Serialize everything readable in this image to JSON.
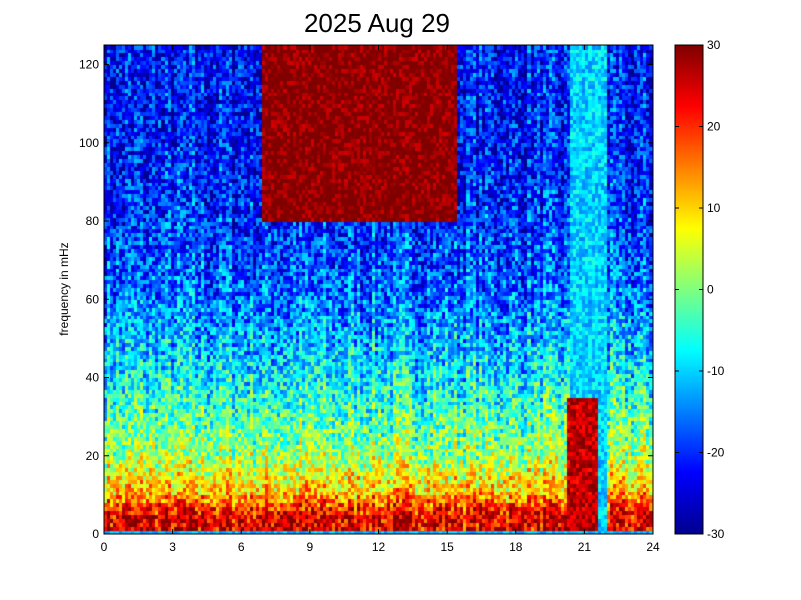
{
  "chart_data": {
    "type": "heatmap",
    "title": "2025 Aug 29",
    "xlabel": "",
    "ylabel": "frequency in mHz",
    "xlim": [
      0,
      24
    ],
    "ylim": [
      0,
      125
    ],
    "x_ticks": [
      "0",
      "3",
      "6",
      "9",
      "12",
      "15",
      "18",
      "21",
      "24"
    ],
    "y_ticks": [
      "0",
      "20",
      "40",
      "60",
      "80",
      "100",
      "120"
    ],
    "colorbar": {
      "range": [
        -30,
        30
      ],
      "ticks": [
        "-30",
        "-20",
        "-10",
        "0",
        "10",
        "20",
        "30"
      ],
      "colormap": "jet"
    },
    "grid": false,
    "colormap_stops": [
      "#00008f",
      "#0000ff",
      "#00ffff",
      "#ffff00",
      "#ff0000",
      "#800000"
    ],
    "approximate_levels_by_frequency": [
      {
        "frequency_mhz": 5,
        "level": 24
      },
      {
        "frequency_mhz": 10,
        "level": 12
      },
      {
        "frequency_mhz": 20,
        "level": 2
      },
      {
        "frequency_mhz": 40,
        "level": -8
      },
      {
        "frequency_mhz": 60,
        "level": -16
      },
      {
        "frequency_mhz": 80,
        "level": -20
      },
      {
        "frequency_mhz": 100,
        "level": -22
      },
      {
        "frequency_mhz": 120,
        "level": -22
      }
    ],
    "features": [
      {
        "hours": [
          20.4,
          22.0
        ],
        "frequency_mhz": [
          0,
          125
        ],
        "level": -10
      },
      {
        "hours": [
          20.3,
          21.6
        ],
        "frequency_mhz": [
          0,
          35
        ],
        "level": 26
      },
      {
        "hours": [
          7.0,
          15.5
        ],
        "frequency_mhz": [
          80,
          125
        ],
        "level": 30
      }
    ]
  }
}
